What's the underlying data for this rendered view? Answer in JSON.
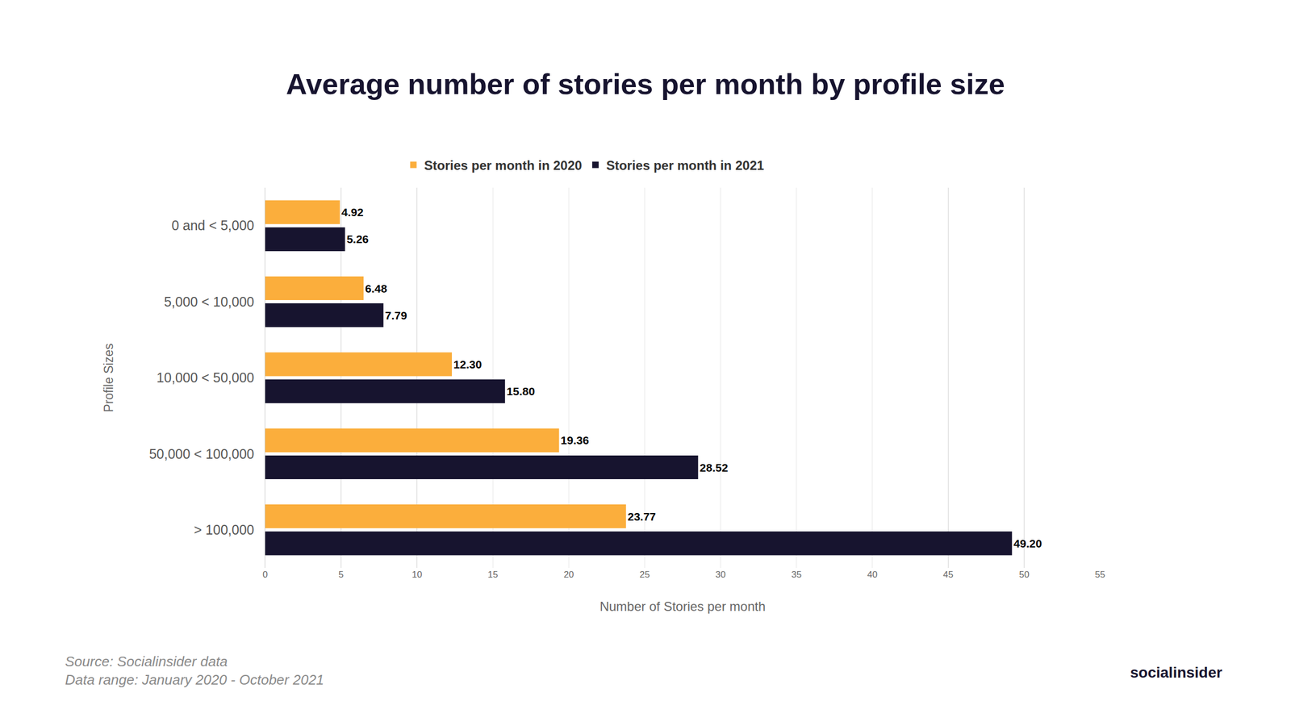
{
  "chart_data": {
    "type": "bar",
    "orientation": "horizontal",
    "title": "Average number of stories per month by profile size",
    "x_label": "Number of Stories per month",
    "y_label": "Profile Sizes",
    "categories": [
      "0 and < 5,000",
      "5,000 < 10,000",
      "10,000 < 50,000",
      "50,000 < 100,000",
      "> 100,000"
    ],
    "series": [
      {
        "name": "Stories per month in 2020",
        "color": "#FBAE3C",
        "values": [
          4.92,
          6.48,
          12.3,
          19.36,
          23.77
        ],
        "value_labels": [
          "4.92",
          "6.48",
          "12.30",
          "19.36",
          "23.77"
        ]
      },
      {
        "name": "Stories per month in 2021",
        "color": "#17142F",
        "values": [
          5.26,
          7.79,
          15.8,
          28.52,
          49.2
        ],
        "value_labels": [
          "5.26",
          "7.79",
          "15.80",
          "28.52",
          "49.20"
        ]
      }
    ],
    "xlim": [
      0,
      55
    ],
    "xticks": [
      0,
      5,
      10,
      15,
      20,
      25,
      30,
      35,
      40,
      45,
      50,
      55
    ],
    "grid": true,
    "legend": "top",
    "data_labels": true,
    "annotations": [
      "Source: Socialinsider data",
      "Data range: January 2020 - October 2021",
      "socialinsider"
    ]
  }
}
